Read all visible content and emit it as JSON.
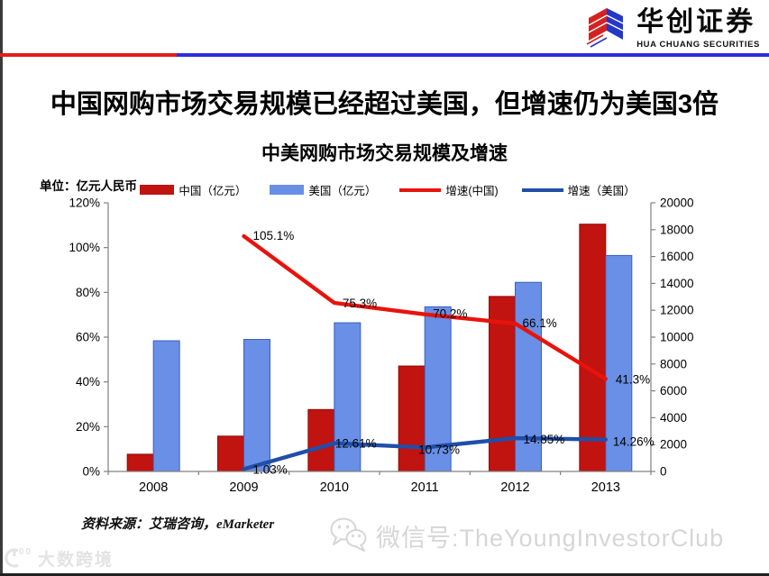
{
  "header": {
    "brand_cn": "华创证券",
    "brand_en": "HUA CHUANG SECURITIES"
  },
  "slide_title": "中国网购市场交易规模已经超过美国，但增速仍为美国3倍",
  "unit_label": "单位：亿元人民币",
  "source_note": "资料来源：艾瑞咨询，eMarketer",
  "watermarks": {
    "wechat": "微信号:TheYoungInvestorClub",
    "corner": "大数跨境"
  },
  "colors": {
    "rule_red": "#E21B1B",
    "rule_blue": "#2A2FE0",
    "logo_red": "#D42222",
    "logo_blue": "#2438C8",
    "axis_gray": "#808080",
    "watermark_gray": "#D6D6D6"
  },
  "chart_data": {
    "type": "bar",
    "subtype": "combo bar+line, dual axis",
    "title": "中美网购市场交易规模及增速",
    "categories": [
      "2008",
      "2009",
      "2010",
      "2011",
      "2012",
      "2013"
    ],
    "series": [
      {
        "name": "中国（亿元）",
        "type": "bar",
        "axis": "right",
        "color": "#C11310",
        "values": [
          1282,
          2630,
          4610,
          7850,
          13030,
          18410
        ]
      },
      {
        "name": "美国（亿元）",
        "type": "bar",
        "axis": "right",
        "color": "#698FE6",
        "values": [
          9730,
          9830,
          11070,
          12260,
          14080,
          16080
        ]
      },
      {
        "name": "增速(中国)",
        "type": "line",
        "axis": "left",
        "color": "#E8130C",
        "values": [
          null,
          105.1,
          75.3,
          70.2,
          66.1,
          41.3
        ],
        "point_labels": [
          null,
          "105.1%",
          "75.3%",
          "70.2%",
          "66.1%",
          "41.3%"
        ],
        "label_offsets": [
          null,
          [
            10,
            4
          ],
          [
            9,
            5
          ],
          [
            9,
            4
          ],
          [
            8,
            4
          ],
          [
            11,
            5
          ]
        ]
      },
      {
        "name": "增速（美国）",
        "type": "line",
        "axis": "left",
        "color": "#1F4FA8",
        "values": [
          null,
          1.03,
          12.61,
          10.73,
          14.85,
          14.26
        ],
        "point_labels": [
          null,
          "1.03%",
          "12.61%",
          "10.73%",
          "14.85%",
          "14.26%"
        ],
        "label_offsets": [
          null,
          [
            10,
            5
          ],
          [
            1,
            5
          ],
          [
            -7,
            7
          ],
          [
            9,
            6
          ],
          [
            8,
            7
          ]
        ]
      }
    ],
    "left_axis": {
      "min": 0,
      "max": 120,
      "ticks": [
        "0%",
        "20%",
        "40%",
        "60%",
        "80%",
        "100%",
        "120%"
      ]
    },
    "right_axis": {
      "min": 0,
      "max": 20000,
      "ticks": [
        "0",
        "2000",
        "4000",
        "6000",
        "8000",
        "10000",
        "12000",
        "14000",
        "16000",
        "18000",
        "20000"
      ]
    },
    "grid": false,
    "legend_position": "top"
  }
}
